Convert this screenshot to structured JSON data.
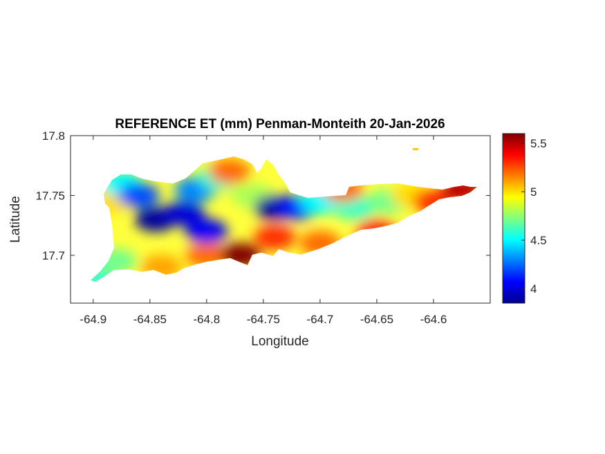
{
  "chart_data": {
    "type": "heatmap",
    "title": "REFERENCE ET (mm) Penman-Monteith 20-Jan-2026",
    "xlabel": "Longitude",
    "ylabel": "Latitude",
    "xlim": [
      -64.92,
      -64.55
    ],
    "ylim": [
      17.66,
      17.8
    ],
    "xticks": [
      -64.9,
      -64.85,
      -64.8,
      -64.75,
      -64.7,
      -64.65,
      -64.6
    ],
    "xtick_labels": [
      "-64.9",
      "-64.85",
      "-64.8",
      "-64.75",
      "-64.7",
      "-64.65",
      "-64.6"
    ],
    "yticks": [
      17.7,
      17.75,
      17.8
    ],
    "ytick_labels": [
      "17.7",
      "17.75",
      "17.8"
    ],
    "colorbar": {
      "colormap": "jet",
      "clim": [
        3.85,
        5.6
      ],
      "ticks": [
        4,
        4.5,
        5,
        5.5
      ],
      "tick_labels": [
        "4",
        "4.5",
        "5",
        "5.5"
      ]
    },
    "grid": false,
    "field_samples": [
      {
        "lon": -64.9,
        "lat": 17.68,
        "et": 4.6
      },
      {
        "lon": -64.88,
        "lat": 17.695,
        "et": 4.7
      },
      {
        "lon": -64.885,
        "lat": 17.745,
        "et": 5.0
      },
      {
        "lon": -64.875,
        "lat": 17.76,
        "et": 4.5
      },
      {
        "lon": -64.86,
        "lat": 17.75,
        "et": 4.2
      },
      {
        "lon": -64.845,
        "lat": 17.73,
        "et": 3.9
      },
      {
        "lon": -64.82,
        "lat": 17.735,
        "et": 4.0
      },
      {
        "lon": -64.8,
        "lat": 17.72,
        "et": 4.05
      },
      {
        "lon": -64.81,
        "lat": 17.755,
        "et": 4.3
      },
      {
        "lon": -64.79,
        "lat": 17.765,
        "et": 4.6
      },
      {
        "lon": -64.78,
        "lat": 17.77,
        "et": 5.2
      },
      {
        "lon": -64.8,
        "lat": 17.7,
        "et": 5.2
      },
      {
        "lon": -64.77,
        "lat": 17.7,
        "et": 5.6
      },
      {
        "lon": -64.84,
        "lat": 17.69,
        "et": 5.1
      },
      {
        "lon": -64.76,
        "lat": 17.75,
        "et": 4.8
      },
      {
        "lon": -64.74,
        "lat": 17.74,
        "et": 3.9
      },
      {
        "lon": -64.72,
        "lat": 17.74,
        "et": 4.1
      },
      {
        "lon": -64.74,
        "lat": 17.715,
        "et": 5.3
      },
      {
        "lon": -64.7,
        "lat": 17.71,
        "et": 5.2
      },
      {
        "lon": -64.7,
        "lat": 17.745,
        "et": 4.5
      },
      {
        "lon": -64.67,
        "lat": 17.74,
        "et": 4.6
      },
      {
        "lon": -64.64,
        "lat": 17.745,
        "et": 4.7
      },
      {
        "lon": -64.65,
        "lat": 17.72,
        "et": 5.3
      },
      {
        "lon": -64.68,
        "lat": 17.755,
        "et": 5.2
      },
      {
        "lon": -64.62,
        "lat": 17.75,
        "et": 5.0
      },
      {
        "lon": -64.6,
        "lat": 17.745,
        "et": 5.3
      },
      {
        "lon": -64.575,
        "lat": 17.755,
        "et": 5.5
      },
      {
        "lon": -64.625,
        "lat": 17.785,
        "et": 5.1
      }
    ]
  }
}
